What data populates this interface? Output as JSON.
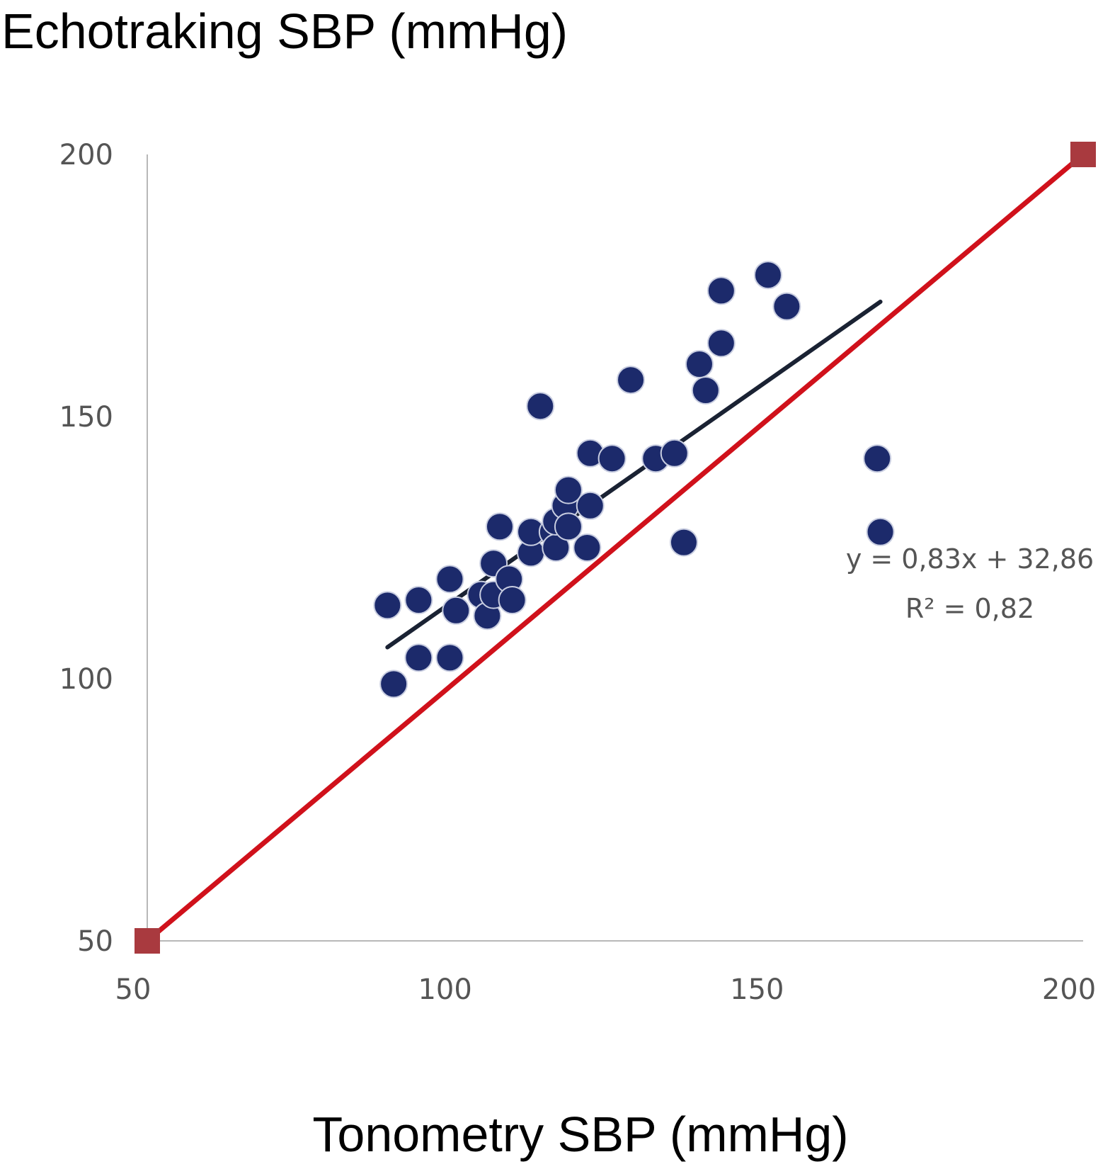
{
  "chart_data": {
    "type": "scatter",
    "title": "",
    "xlabel": "Tonometry SBP (mmHg)",
    "ylabel": "Echotraking SBP (mmHg)",
    "xlim": [
      50,
      200
    ],
    "ylim": [
      50,
      200
    ],
    "x_ticks": [
      "50",
      "100",
      "150",
      "200"
    ],
    "y_ticks": [
      "50",
      "100",
      "150",
      "200"
    ],
    "grid": false,
    "series": [
      {
        "type": "scatter",
        "color": "#1c2a6b",
        "x": [
          88.5,
          89.5,
          93.5,
          93.5,
          98.5,
          98.5,
          99.5,
          103.5,
          104.5,
          105.5,
          105.5,
          106.5,
          108,
          108.5,
          111.5,
          111.5,
          113,
          115,
          115.5,
          115.5,
          117,
          117.5,
          117.5,
          120.5,
          121,
          121,
          124.5,
          127.5,
          131.5,
          134.5,
          136,
          138.5,
          139.5,
          142,
          142,
          149.5,
          152.5,
          167,
          167.5
        ],
        "y": [
          114,
          99,
          115,
          104,
          119,
          104,
          113,
          116,
          112,
          116,
          122,
          129,
          119,
          115,
          124,
          128,
          152,
          128,
          125,
          130,
          133,
          129,
          136,
          125,
          143,
          133,
          142,
          157,
          142,
          143,
          126,
          160,
          155,
          164,
          174,
          177,
          171,
          142,
          128
        ]
      },
      {
        "type": "line",
        "name": "identity",
        "color": "#d0111b",
        "x": [
          50,
          200
        ],
        "y": [
          50,
          200
        ],
        "marker": "square",
        "marker_color": "#a93a3f"
      },
      {
        "type": "line",
        "name": "trendline",
        "color": "#1a2233",
        "x": [
          88.5,
          167.5
        ],
        "y": [
          106,
          171.9
        ]
      }
    ],
    "annotations": [
      "y = 0,83x + 32,86",
      "R² = 0,82"
    ]
  }
}
